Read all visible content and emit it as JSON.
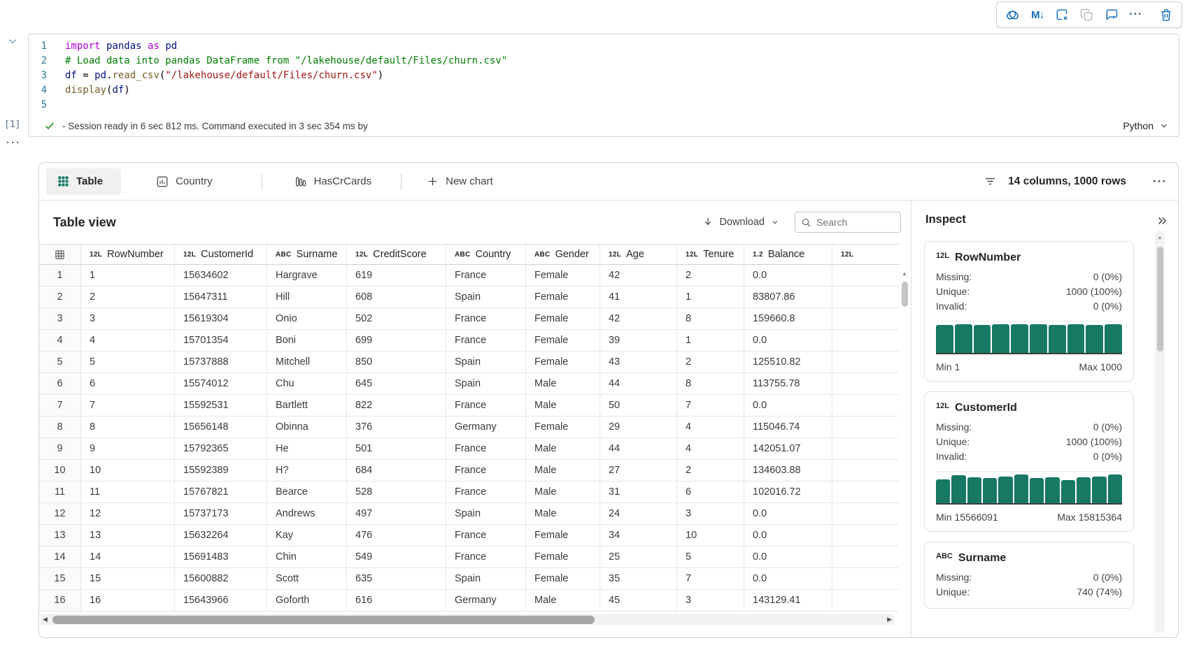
{
  "cell_toolbar": {
    "markdown_label": "M↓",
    "more_label": "···",
    "icons": [
      "copilot-icon",
      "markdown-icon",
      "clear-outputs-icon",
      "duplicate-cell-icon",
      "add-comment-icon",
      "more-options-icon",
      "delete-cell-icon"
    ]
  },
  "code": {
    "execution_label": "[1]",
    "status_text": "- Session ready in 6 sec 812 ms. Command executed in 3 sec 354 ms by",
    "language": "Python",
    "cell_more_label": "···",
    "lines": [
      {
        "n": "1",
        "tokens": [
          [
            "kw",
            "import"
          ],
          [
            "pl",
            " "
          ],
          [
            "id",
            "pandas"
          ],
          [
            "pl",
            " "
          ],
          [
            "kw",
            "as"
          ],
          [
            "pl",
            " "
          ],
          [
            "id",
            "pd"
          ]
        ]
      },
      {
        "n": "2",
        "tokens": [
          [
            "cm",
            "# Load data into pandas DataFrame from \"/lakehouse/default/Files/churn.csv\""
          ]
        ]
      },
      {
        "n": "3",
        "tokens": [
          [
            "id",
            "df"
          ],
          [
            "pl",
            " = "
          ],
          [
            "id",
            "pd"
          ],
          [
            "pl",
            "."
          ],
          [
            "fn",
            "read_csv"
          ],
          [
            "pl",
            "("
          ],
          [
            "st",
            "\"/lakehouse/default/Files/churn.csv\""
          ],
          [
            "pl",
            ")"
          ]
        ]
      },
      {
        "n": "4",
        "tokens": [
          [
            "fn",
            "display"
          ],
          [
            "pl",
            "("
          ],
          [
            "id",
            "df"
          ],
          [
            "pl",
            ")"
          ]
        ]
      },
      {
        "n": "5",
        "tokens": []
      }
    ]
  },
  "results": {
    "tabs": [
      {
        "label": "Table",
        "active": true
      },
      {
        "label": "Country",
        "active": false
      },
      {
        "label": "HasCrCards",
        "active": false
      },
      {
        "label": "New chart",
        "active": false
      }
    ],
    "summary": "14 columns, 1000 rows",
    "more_label": "···",
    "view_title": "Table view",
    "download_label": "Download",
    "search_placeholder": "Search"
  },
  "table": {
    "columns": [
      {
        "type": "12L",
        "name": "RowNumber"
      },
      {
        "type": "12L",
        "name": "CustomerId"
      },
      {
        "type": "ABC",
        "name": "Surname"
      },
      {
        "type": "12L",
        "name": "CreditScore"
      },
      {
        "type": "ABC",
        "name": "Country"
      },
      {
        "type": "ABC",
        "name": "Gender"
      },
      {
        "type": "12L",
        "name": "Age"
      },
      {
        "type": "12L",
        "name": "Tenure"
      },
      {
        "type": "1.2",
        "name": "Balance"
      },
      {
        "type": "12L",
        "name": ""
      }
    ],
    "rows": [
      [
        "1",
        "1",
        "15634602",
        "Hargrave",
        "619",
        "France",
        "Female",
        "42",
        "2",
        "0.0"
      ],
      [
        "2",
        "2",
        "15647311",
        "Hill",
        "608",
        "Spain",
        "Female",
        "41",
        "1",
        "83807.86"
      ],
      [
        "3",
        "3",
        "15619304",
        "Onio",
        "502",
        "France",
        "Female",
        "42",
        "8",
        "159660.8"
      ],
      [
        "4",
        "4",
        "15701354",
        "Boni",
        "699",
        "France",
        "Female",
        "39",
        "1",
        "0.0"
      ],
      [
        "5",
        "5",
        "15737888",
        "Mitchell",
        "850",
        "Spain",
        "Female",
        "43",
        "2",
        "125510.82"
      ],
      [
        "6",
        "6",
        "15574012",
        "Chu",
        "645",
        "Spain",
        "Male",
        "44",
        "8",
        "113755.78"
      ],
      [
        "7",
        "7",
        "15592531",
        "Bartlett",
        "822",
        "France",
        "Male",
        "50",
        "7",
        "0.0"
      ],
      [
        "8",
        "8",
        "15656148",
        "Obinna",
        "376",
        "Germany",
        "Female",
        "29",
        "4",
        "115046.74"
      ],
      [
        "9",
        "9",
        "15792365",
        "He",
        "501",
        "France",
        "Male",
        "44",
        "4",
        "142051.07"
      ],
      [
        "10",
        "10",
        "15592389",
        "H?",
        "684",
        "France",
        "Male",
        "27",
        "2",
        "134603.88"
      ],
      [
        "11",
        "11",
        "15767821",
        "Bearce",
        "528",
        "France",
        "Male",
        "31",
        "6",
        "102016.72"
      ],
      [
        "12",
        "12",
        "15737173",
        "Andrews",
        "497",
        "Spain",
        "Male",
        "24",
        "3",
        "0.0"
      ],
      [
        "13",
        "13",
        "15632264",
        "Kay",
        "476",
        "France",
        "Female",
        "34",
        "10",
        "0.0"
      ],
      [
        "14",
        "14",
        "15691483",
        "Chin",
        "549",
        "France",
        "Female",
        "25",
        "5",
        "0.0"
      ],
      [
        "15",
        "15",
        "15600882",
        "Scott",
        "635",
        "Spain",
        "Female",
        "35",
        "7",
        "0.0"
      ],
      [
        "16",
        "16",
        "15643966",
        "Goforth",
        "616",
        "Germany",
        "Male",
        "45",
        "3",
        "143129.41"
      ]
    ]
  },
  "inspect": {
    "title": "Inspect",
    "cards": [
      {
        "type": "12L",
        "name": "RowNumber",
        "stats": [
          [
            "Missing:",
            "0 (0%)"
          ],
          [
            "Unique:",
            "1000 (100%)"
          ],
          [
            "Invalid:",
            "0 (0%)"
          ]
        ],
        "hist": [
          97,
          100,
          98,
          100,
          99,
          100,
          97,
          100,
          98,
          100
        ],
        "min": "Min 1",
        "max": "Max 1000"
      },
      {
        "type": "12L",
        "name": "CustomerId",
        "stats": [
          [
            "Missing:",
            "0 (0%)"
          ],
          [
            "Unique:",
            "1000 (100%)"
          ],
          [
            "Invalid:",
            "0 (0%)"
          ]
        ],
        "hist": [
          84,
          97,
          90,
          88,
          92,
          99,
          89,
          91,
          81,
          90,
          92,
          100
        ],
        "min": "Min 15566091",
        "max": "Max 15815364"
      },
      {
        "type": "ABC",
        "name": "Surname",
        "stats": [
          [
            "Missing:",
            "0 (0%)"
          ],
          [
            "Unique:",
            "740 (74%)"
          ]
        ],
        "hist": null,
        "min": null,
        "max": null
      }
    ]
  },
  "colors": {
    "accent": "#0f6cbd",
    "teal": "#177864",
    "status_green": "#218821"
  }
}
